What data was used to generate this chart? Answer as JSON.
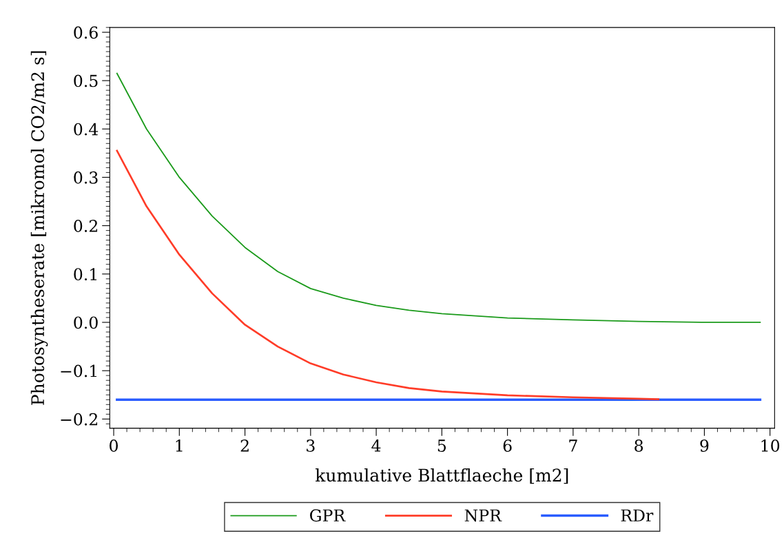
{
  "chart_data": {
    "type": "line",
    "xlabel": "kumulative Blattflaeche [m2]",
    "ylabel": "Photosyntheserate [mikromol CO2/m2 s]",
    "xlim": [
      -0.06,
      10.07
    ],
    "xticks": [
      0,
      1,
      2,
      3,
      4,
      5,
      6,
      7,
      8,
      9,
      10
    ],
    "ylim": [
      -0.219,
      0.61
    ],
    "yticks": [
      {
        "value": -0.2,
        "label": "−0.2"
      },
      {
        "value": -0.1,
        "label": "−0.1"
      },
      {
        "value": 0.0,
        "label": "0.0"
      },
      {
        "value": 0.1,
        "label": "0.1"
      },
      {
        "value": 0.2,
        "label": "0.2"
      },
      {
        "value": 0.3,
        "label": "0.3"
      },
      {
        "value": 0.4,
        "label": "0.4"
      },
      {
        "value": 0.5,
        "label": "0.5"
      },
      {
        "value": 0.6,
        "label": "0.6"
      }
    ],
    "grid": false,
    "legend": "bottom",
    "marker": "none",
    "line_style": "solid",
    "series": [
      {
        "name": "GPR",
        "color": "#1a9a1a",
        "x": [
          0.05,
          0.5,
          1,
          1.5,
          2,
          2.5,
          3,
          3.5,
          4,
          4.5,
          5,
          6,
          7,
          8,
          9,
          9.85
        ],
        "values": [
          0.515,
          0.4,
          0.3,
          0.22,
          0.155,
          0.105,
          0.07,
          0.05,
          0.035,
          0.025,
          0.018,
          0.009,
          0.005,
          0.002,
          0.0,
          0.0
        ]
      },
      {
        "name": "NPR",
        "color": "#ff3c28",
        "x": [
          0.05,
          0.5,
          1,
          1.5,
          2,
          2.5,
          3,
          3.5,
          4,
          4.5,
          5,
          6,
          7,
          8,
          8.3
        ],
        "values": [
          0.355,
          0.24,
          0.14,
          0.06,
          -0.005,
          -0.05,
          -0.085,
          -0.108,
          -0.124,
          -0.136,
          -0.143,
          -0.151,
          -0.155,
          -0.158,
          -0.159
        ]
      },
      {
        "name": "RDr",
        "color": "#2a5cff",
        "x": [
          0.05,
          9.85
        ],
        "values": [
          -0.16,
          -0.16
        ]
      }
    ]
  }
}
